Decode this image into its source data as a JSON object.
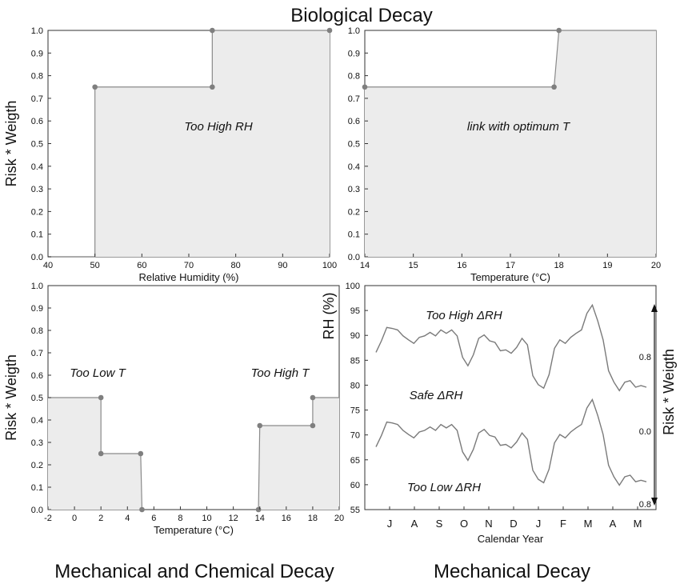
{
  "titles": {
    "top": "Biological Decay",
    "bottom_left": "Mechanical and Chemical Decay",
    "bottom_right": "Mechanical Decay"
  },
  "colors": {
    "fill": "#ececec",
    "line": "#8a8a8a",
    "marker": "#7f7f7f",
    "series": "#7a7a7a"
  },
  "chart_data": [
    {
      "type": "area",
      "title": "Biological Decay",
      "xlabel": "Relative Humidity (%)",
      "ylabel": "Risk * Weigth",
      "xlim": [
        40,
        100
      ],
      "ylim": [
        0,
        1.0
      ],
      "xticks": [
        40,
        50,
        60,
        70,
        80,
        90,
        100
      ],
      "yticks": [
        0.0,
        0.1,
        0.2,
        0.3,
        0.4,
        0.5,
        0.6,
        0.7,
        0.8,
        0.9,
        1.0
      ],
      "x": [
        40,
        50,
        50,
        75,
        75,
        100
      ],
      "y": [
        0,
        0,
        0.75,
        0.75,
        1.0,
        1.0
      ],
      "markers": [
        [
          50,
          0.75
        ],
        [
          75,
          0.75
        ],
        [
          75,
          1.0
        ],
        [
          100,
          1.0
        ]
      ],
      "annotation": "Too High RH"
    },
    {
      "type": "area",
      "title": "Biological Decay",
      "xlabel": "Temperature (°C)",
      "ylabel": "",
      "xlim": [
        14,
        20
      ],
      "ylim": [
        0,
        1.0
      ],
      "xticks": [
        14,
        15,
        16,
        17,
        18,
        19,
        20
      ],
      "yticks": [
        0.0,
        0.1,
        0.2,
        0.3,
        0.4,
        0.5,
        0.6,
        0.7,
        0.8,
        0.9,
        1.0
      ],
      "x": [
        14,
        17.9,
        18,
        20
      ],
      "y": [
        0.75,
        0.75,
        1.0,
        1.0
      ],
      "markers": [
        [
          14,
          0.75
        ],
        [
          17.9,
          0.75
        ],
        [
          18,
          1.0
        ]
      ],
      "annotation": "link with optimum T"
    },
    {
      "type": "area",
      "title": "Mechanical and Chemical Decay",
      "xlabel": "Temperature (°C)",
      "ylabel": "Risk * Weigth",
      "xlim": [
        -2,
        20
      ],
      "ylim": [
        0,
        1.0
      ],
      "xticks": [
        -2,
        0,
        2,
        4,
        6,
        8,
        10,
        12,
        14,
        16,
        18,
        20
      ],
      "yticks": [
        0.0,
        0.1,
        0.2,
        0.3,
        0.4,
        0.5,
        0.6,
        0.7,
        0.8,
        0.9,
        1.0
      ],
      "segments": [
        {
          "x": [
            -2,
            2,
            2,
            5,
            5.1
          ],
          "y": [
            0.5,
            0.5,
            0.25,
            0.25,
            0
          ]
        },
        {
          "x": [
            13.9,
            14,
            18,
            18,
            20
          ],
          "y": [
            0,
            0.375,
            0.375,
            0.5,
            0.5
          ]
        }
      ],
      "markers": [
        [
          2,
          0.5
        ],
        [
          2,
          0.25
        ],
        [
          5,
          0.25
        ],
        [
          5.1,
          0
        ],
        [
          13.9,
          0
        ],
        [
          14,
          0.375
        ],
        [
          18,
          0.375
        ],
        [
          18,
          0.5
        ]
      ],
      "annotations": [
        "Too Low T",
        "Too High T"
      ]
    },
    {
      "type": "line",
      "title": "Mechanical Decay",
      "xlabel": "Calendar Year",
      "ylabel": "RH (%)",
      "y2label": "Risk * Weigth",
      "ylim": [
        55,
        100
      ],
      "yticks": [
        55,
        60,
        65,
        70,
        75,
        80,
        85,
        90,
        95,
        100
      ],
      "categories": [
        "J",
        "A",
        "S",
        "O",
        "N",
        "D",
        "J",
        "F",
        "M",
        "A",
        "M"
      ],
      "y2ticks": [
        "0.8",
        "0.0",
        "0.8"
      ],
      "series_upper": [
        86.5,
        89,
        91.5,
        91.5,
        91,
        90,
        89,
        88.5,
        89.5,
        90,
        90.5,
        90,
        91,
        90.5,
        91,
        90,
        85.5,
        84,
        86,
        89.5,
        90,
        89,
        88.5,
        87,
        87,
        86.5,
        87.5,
        89.5,
        88,
        82,
        80,
        79.5,
        82,
        87.5,
        89,
        88.5,
        89.5,
        90.5,
        91,
        94.5,
        96,
        93,
        89,
        83,
        80.5,
        79,
        80.5,
        81,
        79.5,
        80,
        79.5
      ],
      "series_lower": [
        67.5,
        70,
        72.5,
        72.5,
        72,
        71,
        70,
        69.5,
        70.5,
        71,
        71.5,
        71,
        72,
        71.5,
        72,
        71,
        66.5,
        65,
        67,
        70.5,
        71,
        70,
        69.5,
        68,
        68,
        67.5,
        68.5,
        70.5,
        69,
        63,
        61,
        60.5,
        63,
        68.5,
        70,
        69.5,
        70.5,
        71.5,
        72,
        75.5,
        77,
        74,
        70,
        64,
        61.5,
        60,
        61.5,
        62,
        60.5,
        61,
        60.5
      ],
      "annotations": [
        "Too High ΔRH",
        "Safe ΔRH",
        "Too Low ΔRH"
      ]
    }
  ]
}
